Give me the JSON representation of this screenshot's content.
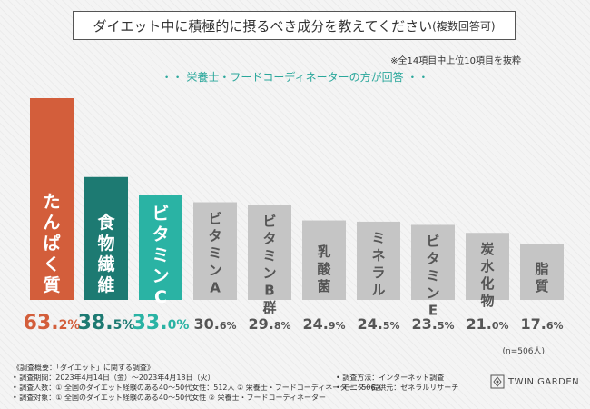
{
  "header": {
    "title": "ダイエット中に積極的に摂るべき成分を教えてください",
    "title_suffix": "(複数回答可)",
    "note": "※全14項目中上位10項目を抜粋",
    "target_label": "・・ 栄養士・フードコーディネーターの方が回答 ・・"
  },
  "chart_data": {
    "type": "bar",
    "categories": [
      "たんぱく質",
      "食物繊維",
      "ビタミンC",
      "ビタミンA",
      "ビタミンB群",
      "乳酸菌",
      "ミネラル",
      "ビタミンE",
      "炭水化物",
      "脂質"
    ],
    "values": [
      63.2,
      38.5,
      33.0,
      30.6,
      29.8,
      24.9,
      24.5,
      23.5,
      21.0,
      17.6
    ],
    "value_labels": [
      "63.2%",
      "38.5%",
      "33.0%",
      "30.6%",
      "29.8%",
      "24.9%",
      "24.5%",
      "23.5%",
      "21.0%",
      "17.6%"
    ],
    "unit": "%",
    "ylim": [
      0,
      63.2
    ],
    "grid": false,
    "colors": [
      "#d35e3b",
      "#1d7a72",
      "#2ab3a4",
      "#c5c5c5",
      "#c5c5c5",
      "#c5c5c5",
      "#c5c5c5",
      "#c5c5c5",
      "#c5c5c5",
      "#c5c5c5"
    ],
    "label_colors": [
      "#d35e3b",
      "#1d7a72",
      "#2ab3a4",
      "#555555",
      "#555555",
      "#555555",
      "#555555",
      "#555555",
      "#555555",
      "#555555"
    ],
    "n_label": "(n=506人)"
  },
  "footer": {
    "lines": [
      "《調査概要：「ダイエット」に関する調査》",
      "• 調査期間：2023年4月14日（金）〜2023年4月18日（火）",
      "• 調査人数：① 全国のダイエット経験のある40〜50代女性：512人 ② 栄養士・フードコーディネーター：506人",
      "• 調査対象：① 全国のダイエット経験のある40〜50代女性 ② 栄養士・フードコーディネーター"
    ],
    "right_lines": [
      "• 調査方法：インターネット調査",
      "• モニター提供元：ゼネラルリサーチ"
    ],
    "logo_text": "TWIN GARDEN"
  }
}
